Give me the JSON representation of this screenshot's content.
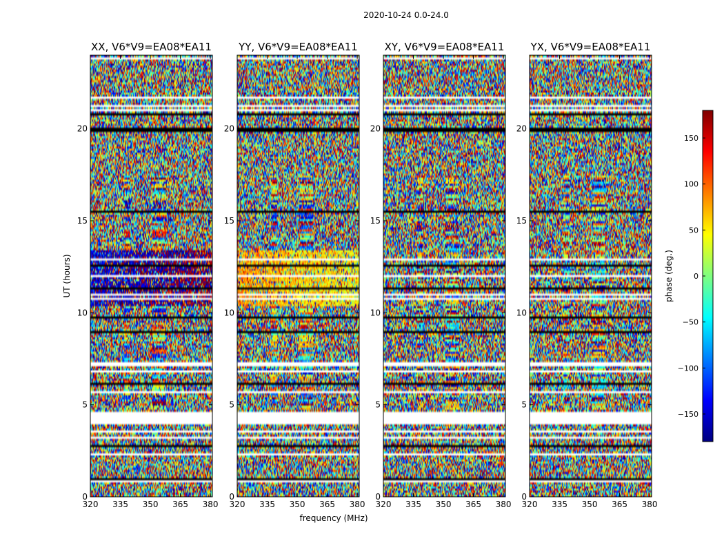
{
  "chart_data": {
    "type": "heatmap",
    "suptitle": "2020-10-24 0.0-24.0",
    "xlabel": "frequency (MHz)",
    "ylabel": "UT (hours)",
    "xlim": [
      320,
      381
    ],
    "ylim": [
      0,
      24
    ],
    "xticks": [
      320,
      335,
      350,
      365,
      380
    ],
    "yticks": [
      0,
      5,
      10,
      15,
      20
    ],
    "colorbar": {
      "label": "phase (deg.)",
      "range": [
        -180,
        180
      ],
      "ticks": [
        150,
        100,
        50,
        0,
        -50,
        -100,
        -150
      ],
      "tick_labels": [
        "150",
        "100",
        "50",
        "0",
        "−50",
        "−100",
        "−150"
      ],
      "colormap": "jet",
      "colors": [
        "#00007f",
        "#0000ff",
        "#007fff",
        "#00ffff",
        "#7fff7f",
        "#ffff00",
        "#ff7f00",
        "#ff0000",
        "#7f0000"
      ]
    },
    "panels": [
      {
        "title": "XX, V6*V9=EA08*EA11",
        "pol": "XX",
        "coherent_phase_deg": -150
      },
      {
        "title": "YY, V6*V9=EA08*EA11",
        "pol": "YY",
        "coherent_phase_deg": 80
      },
      {
        "title": "XY, V6*V9=EA08*EA11",
        "pol": "XY",
        "coherent_phase_deg": null
      },
      {
        "title": "YX, V6*V9=EA08*EA11",
        "pol": "YX",
        "coherent_phase_deg": null
      }
    ],
    "flagged_ut_ranges": [
      [
        3.1,
        3.3
      ],
      [
        4.0,
        4.6
      ],
      [
        19.8,
        20.1
      ]
    ],
    "coherent_ut_range": [
      10.4,
      13.4
    ],
    "stripe_frequency_ranges_mhz": [
      [
        337,
        340
      ],
      [
        351,
        358
      ]
    ],
    "stripe_ut_range": [
      4.7,
      17.5
    ]
  }
}
